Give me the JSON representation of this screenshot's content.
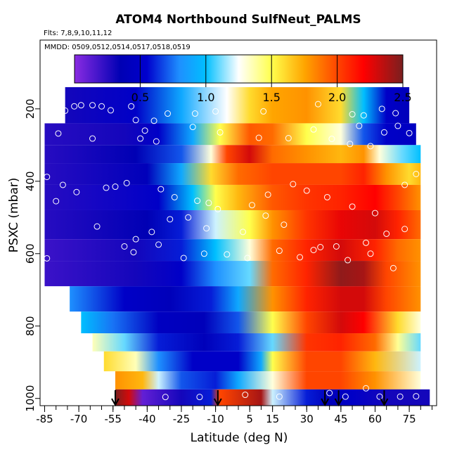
{
  "chart_data": {
    "type": "heatmap",
    "title": "ATOM4 Northbound SulfNeut_PALMS",
    "flights_label": "Flts: 7,8,9,10,11,12",
    "mmdd_label": "MMDD: 0509,0512,0514,0517,0518,0519",
    "xlabel": "Latitude (deg N)",
    "ylabel": "PSXC (mbar)",
    "xlim": [
      -87,
      87
    ],
    "ylim": [
      1020,
      10
    ],
    "x_ticks": [
      "-85",
      "-70",
      "-55",
      "-40",
      "-25",
      "-10",
      "5",
      "15",
      "30",
      "45",
      "60",
      "75"
    ],
    "y_ticks": [
      "200",
      "400",
      "600",
      "800",
      "1000"
    ],
    "colorbar": {
      "range": [
        0,
        2.5
      ],
      "ticks": [
        "0.5",
        "1.0",
        "1.5",
        "2.0",
        "2.5"
      ],
      "colors": [
        "#8a2be2",
        "#0000b4",
        "#1e90ff",
        "#00bfff",
        "#ffffff",
        "#ffff4d",
        "#ff8c00",
        "#ff0000",
        "#7a1f1f"
      ]
    },
    "arrow_latitudes": [
      -54,
      -9,
      38,
      44,
      64
    ],
    "grid": false,
    "rows": [
      {
        "p_top": 140,
        "p_bot": 240,
        "lat_min": -76,
        "lat_max": 75,
        "knots": [
          [
            -76,
            0.3
          ],
          [
            -45,
            0.5
          ],
          [
            -25,
            0.9
          ],
          [
            -5,
            1.25
          ],
          [
            5,
            1.6
          ],
          [
            15,
            1.75
          ],
          [
            30,
            1.8
          ],
          [
            45,
            1.6
          ],
          [
            55,
            1.0
          ],
          [
            65,
            0.5
          ],
          [
            75,
            0.4
          ]
        ]
      },
      {
        "p_top": 240,
        "p_bot": 300,
        "lat_min": -85,
        "lat_max": 78,
        "knots": [
          [
            -85,
            0.25
          ],
          [
            -50,
            0.3
          ],
          [
            -35,
            0.5
          ],
          [
            -20,
            0.9
          ],
          [
            -8,
            1.5
          ],
          [
            5,
            1.95
          ],
          [
            15,
            1.9
          ],
          [
            30,
            1.5
          ],
          [
            45,
            1.3
          ],
          [
            55,
            0.7
          ],
          [
            65,
            0.5
          ],
          [
            78,
            0.45
          ]
        ]
      },
      {
        "p_top": 300,
        "p_bot": 350,
        "lat_min": -85,
        "lat_max": 80,
        "knots": [
          [
            -85,
            0.25
          ],
          [
            -45,
            0.35
          ],
          [
            -25,
            0.7
          ],
          [
            -12,
            1.3
          ],
          [
            -5,
            2.0
          ],
          [
            5,
            2.3
          ],
          [
            15,
            1.9
          ],
          [
            30,
            1.8
          ],
          [
            45,
            1.7
          ],
          [
            55,
            1.8
          ],
          [
            62,
            1.3
          ],
          [
            72,
            1.1
          ],
          [
            80,
            1.0
          ]
        ]
      },
      {
        "p_top": 350,
        "p_bot": 410,
        "lat_min": -85,
        "lat_max": 80,
        "knots": [
          [
            -85,
            0.25
          ],
          [
            -40,
            0.4
          ],
          [
            -25,
            0.9
          ],
          [
            -12,
            1.6
          ],
          [
            0,
            1.9
          ],
          [
            15,
            2.0
          ],
          [
            30,
            2.0
          ],
          [
            45,
            2.0
          ],
          [
            55,
            2.1
          ],
          [
            65,
            1.8
          ],
          [
            75,
            1.6
          ],
          [
            80,
            1.7
          ]
        ]
      },
      {
        "p_top": 410,
        "p_bot": 480,
        "lat_min": -85,
        "lat_max": 80,
        "knots": [
          [
            -85,
            0.25
          ],
          [
            -35,
            0.5
          ],
          [
            -20,
            1.0
          ],
          [
            -10,
            1.5
          ],
          [
            0,
            1.7
          ],
          [
            15,
            1.95
          ],
          [
            30,
            2.05
          ],
          [
            45,
            2.1
          ],
          [
            60,
            2.2
          ],
          [
            70,
            2.0
          ],
          [
            80,
            1.8
          ]
        ]
      },
      {
        "p_top": 480,
        "p_bot": 560,
        "lat_min": -85,
        "lat_max": 80,
        "knots": [
          [
            -85,
            0.25
          ],
          [
            -40,
            0.35
          ],
          [
            -25,
            0.6
          ],
          [
            -10,
            1.2
          ],
          [
            5,
            1.5
          ],
          [
            15,
            1.8
          ],
          [
            30,
            2.05
          ],
          [
            45,
            2.25
          ],
          [
            60,
            2.3
          ],
          [
            70,
            2.1
          ],
          [
            80,
            1.9
          ]
        ]
      },
      {
        "p_top": 560,
        "p_bot": 620,
        "lat_min": -85,
        "lat_max": 80,
        "knots": [
          [
            -85,
            0.2
          ],
          [
            -45,
            0.3
          ],
          [
            -25,
            0.6
          ],
          [
            -10,
            1.0
          ],
          [
            5,
            1.3
          ],
          [
            15,
            1.9
          ],
          [
            30,
            2.1
          ],
          [
            45,
            2.3
          ],
          [
            60,
            2.1
          ],
          [
            70,
            1.9
          ],
          [
            80,
            1.8
          ]
        ]
      },
      {
        "p_top": 620,
        "p_bot": 690,
        "lat_min": -85,
        "lat_max": 80,
        "knots": [
          [
            -85,
            0.2
          ],
          [
            -45,
            0.3
          ],
          [
            -25,
            0.5
          ],
          [
            -10,
            0.8
          ],
          [
            5,
            1.1
          ],
          [
            15,
            1.9
          ],
          [
            30,
            2.1
          ],
          [
            45,
            2.45
          ],
          [
            55,
            2.4
          ],
          [
            65,
            2.0
          ],
          [
            80,
            1.8
          ]
        ]
      },
      {
        "p_top": 690,
        "p_bot": 760,
        "lat_min": -74,
        "lat_max": 80,
        "knots": [
          [
            -74,
            0.8
          ],
          [
            -50,
            0.5
          ],
          [
            -30,
            0.4
          ],
          [
            -12,
            0.6
          ],
          [
            0,
            0.9
          ],
          [
            15,
            1.8
          ],
          [
            30,
            2.1
          ],
          [
            45,
            2.3
          ],
          [
            55,
            2.3
          ],
          [
            65,
            2.0
          ],
          [
            80,
            1.8
          ]
        ]
      },
      {
        "p_top": 760,
        "p_bot": 820,
        "lat_min": -69,
        "lat_max": 80,
        "knots": [
          [
            -69,
            1.0
          ],
          [
            -55,
            0.75
          ],
          [
            -35,
            0.45
          ],
          [
            -15,
            0.4
          ],
          [
            0,
            0.7
          ],
          [
            15,
            1.5
          ],
          [
            30,
            2.0
          ],
          [
            45,
            2.3
          ],
          [
            55,
            2.2
          ],
          [
            70,
            1.6
          ],
          [
            80,
            1.3
          ]
        ]
      },
      {
        "p_top": 820,
        "p_bot": 870,
        "lat_min": -64,
        "lat_max": 80,
        "knots": [
          [
            -64,
            1.35
          ],
          [
            -50,
            1.1
          ],
          [
            -35,
            0.6
          ],
          [
            -15,
            0.4
          ],
          [
            0,
            0.6
          ],
          [
            15,
            1.1
          ],
          [
            30,
            2.05
          ],
          [
            45,
            2.1
          ],
          [
            60,
            1.9
          ],
          [
            70,
            1.4
          ],
          [
            80,
            1.1
          ]
        ]
      },
      {
        "p_top": 870,
        "p_bot": 925,
        "lat_min": -59,
        "lat_max": 80,
        "knots": [
          [
            -59,
            1.6
          ],
          [
            -45,
            1.35
          ],
          [
            -35,
            0.8
          ],
          [
            -20,
            0.5
          ],
          [
            0,
            0.5
          ],
          [
            10,
            0.9
          ],
          [
            15,
            1.5
          ],
          [
            30,
            2.0
          ],
          [
            45,
            2.0
          ],
          [
            60,
            1.7
          ],
          [
            80,
            1.2
          ]
        ]
      },
      {
        "p_top": 925,
        "p_bot": 975,
        "lat_min": -54,
        "lat_max": 80,
        "knots": [
          [
            -54,
            1.8
          ],
          [
            -42,
            1.7
          ],
          [
            -35,
            1.2
          ],
          [
            -25,
            0.7
          ],
          [
            -10,
            0.6
          ],
          [
            0,
            0.9
          ],
          [
            15,
            1.3
          ],
          [
            30,
            2.0
          ],
          [
            45,
            2.0
          ],
          [
            60,
            1.8
          ],
          [
            80,
            1.3
          ]
        ]
      },
      {
        "p_top": 975,
        "p_bot": 1020,
        "lat_min": -54,
        "lat_max": 84,
        "knots": [
          [
            -54,
            2.5
          ],
          [
            -48,
            2.3
          ],
          [
            -42,
            0.1
          ],
          [
            -25,
            0.3
          ],
          [
            -12,
            0.6
          ],
          [
            -8,
            2.0
          ],
          [
            10,
            2.4
          ],
          [
            15,
            1.2
          ],
          [
            30,
            0.6
          ],
          [
            40,
            0.4
          ],
          [
            50,
            0.5
          ],
          [
            65,
            0.3
          ],
          [
            84,
            0.3
          ]
        ]
      }
    ],
    "observations": [
      [
        -85,
        218
      ],
      [
        -76,
        205
      ],
      [
        -72,
        193
      ],
      [
        -69,
        190
      ],
      [
        -64,
        190
      ],
      [
        -60,
        193
      ],
      [
        -56,
        204
      ],
      [
        -47,
        193
      ],
      [
        -45,
        231
      ],
      [
        -41,
        260
      ],
      [
        -37,
        233
      ],
      [
        -31,
        213
      ],
      [
        -19,
        213
      ],
      [
        -10,
        207
      ],
      [
        11,
        207
      ],
      [
        35,
        187
      ],
      [
        50,
        215
      ],
      [
        53,
        247
      ],
      [
        55,
        218
      ],
      [
        63,
        200
      ],
      [
        69,
        212
      ],
      [
        75,
        267
      ],
      [
        -79,
        268
      ],
      [
        -64,
        282
      ],
      [
        -43,
        282
      ],
      [
        -36,
        290
      ],
      [
        -20,
        250
      ],
      [
        -8,
        265
      ],
      [
        9,
        280
      ],
      [
        22,
        281
      ],
      [
        33,
        257
      ],
      [
        41,
        283
      ],
      [
        49,
        297
      ],
      [
        58,
        303
      ],
      [
        64,
        265
      ],
      [
        70,
        247
      ],
      [
        -84,
        388
      ],
      [
        -77,
        410
      ],
      [
        -71,
        430
      ],
      [
        -58,
        418
      ],
      [
        -54,
        415
      ],
      [
        -49,
        405
      ],
      [
        -34,
        422
      ],
      [
        -28,
        444
      ],
      [
        -18,
        454
      ],
      [
        -13,
        460
      ],
      [
        -9,
        477
      ],
      [
        6,
        466
      ],
      [
        13,
        437
      ],
      [
        24,
        408
      ],
      [
        30,
        426
      ],
      [
        39,
        444
      ],
      [
        50,
        470
      ],
      [
        60,
        488
      ],
      [
        73,
        410
      ],
      [
        78,
        380
      ],
      [
        -80,
        455
      ],
      [
        -62,
        525
      ],
      [
        -45,
        560
      ],
      [
        -38,
        540
      ],
      [
        -30,
        505
      ],
      [
        -22,
        500
      ],
      [
        -14,
        530
      ],
      [
        2,
        540
      ],
      [
        12,
        495
      ],
      [
        20,
        520
      ],
      [
        33,
        590
      ],
      [
        43,
        580
      ],
      [
        56,
        570
      ],
      [
        65,
        545
      ],
      [
        73,
        532
      ],
      [
        -84,
        613
      ],
      [
        -50,
        580
      ],
      [
        -46,
        596
      ],
      [
        -35,
        575
      ],
      [
        -24,
        612
      ],
      [
        -15,
        600
      ],
      [
        -5,
        602
      ],
      [
        4,
        612
      ],
      [
        18,
        592
      ],
      [
        27,
        610
      ],
      [
        36,
        582
      ],
      [
        48,
        618
      ],
      [
        58,
        600
      ],
      [
        68,
        640
      ],
      [
        -57,
        985
      ],
      [
        -32,
        996
      ],
      [
        -17,
        996
      ],
      [
        3,
        990
      ],
      [
        18,
        995
      ],
      [
        40,
        985
      ],
      [
        47,
        995
      ],
      [
        56,
        972
      ],
      [
        62,
        995
      ],
      [
        71,
        995
      ],
      [
        78,
        994
      ]
    ]
  }
}
